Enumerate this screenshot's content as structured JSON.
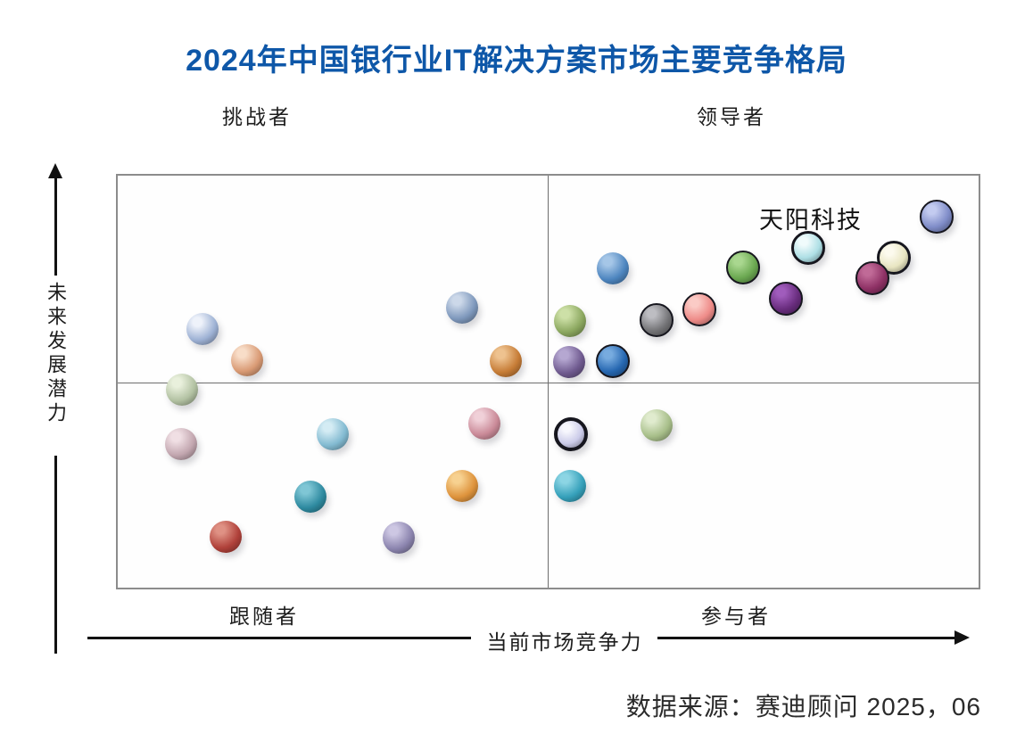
{
  "page": {
    "title": "2024年中国银行业IT解决方案市场主要竞争格局",
    "source": "数据来源：赛迪顾问 2025，06"
  },
  "chart_data": {
    "type": "scatter",
    "title": "2024年中国银行业IT解决方案市场主要竞争格局",
    "xlabel": "当前市场竞争力",
    "ylabel": "未来发展潜力",
    "xlim": [
      0,
      100
    ],
    "ylim": [
      0,
      100
    ],
    "grid": "2x2 quadrant, dividers at x=50 and y=50, no numeric ticks shown",
    "legend_position": "none",
    "quadrant_labels": {
      "top_left": "挑战者",
      "top_right": "领导者",
      "bottom_left": "跟随者",
      "bottom_right": "参与者"
    },
    "labeled_company": "天阳科技",
    "source": "数据来源：赛迪顾问 2025，06",
    "points": [
      {
        "quadrant": "挑战者",
        "x": 10.0,
        "y": 62.7,
        "r": 18,
        "ring": 0,
        "c": "#9db1d4",
        "h": "#eef2fa"
      },
      {
        "quadrant": "挑战者",
        "x": 15.2,
        "y": 55.2,
        "r": 18,
        "ring": 0,
        "c": "#d99a74",
        "h": "#f8ddc8"
      },
      {
        "quadrant": "挑战者",
        "x": 40.0,
        "y": 67.8,
        "r": 18,
        "ring": 0,
        "c": "#7e98bc",
        "h": "#ccd8e9"
      },
      {
        "quadrant": "挑战者",
        "x": 45.1,
        "y": 54.9,
        "r": 18,
        "ring": 0,
        "c": "#c67c36",
        "h": "#eec28f"
      },
      {
        "quadrant": "跟随者",
        "x": 7.6,
        "y": 48.1,
        "r": 18,
        "ring": 0,
        "c": "#b2c1a2",
        "h": "#e9f0dc"
      },
      {
        "quadrant": "跟随者",
        "x": 7.5,
        "y": 35.0,
        "r": 18,
        "ring": 0,
        "c": "#c2a6af",
        "h": "#f0dfe4"
      },
      {
        "quadrant": "跟随者",
        "x": 25.1,
        "y": 37.3,
        "r": 18,
        "ring": 0,
        "c": "#82bad1",
        "h": "#d4ecf4"
      },
      {
        "quadrant": "跟随者",
        "x": 42.6,
        "y": 39.9,
        "r": 18,
        "ring": 0,
        "c": "#ca8a98",
        "h": "#f0d0d8"
      },
      {
        "quadrant": "跟随者",
        "x": 22.5,
        "y": 22.3,
        "r": 18,
        "ring": 0,
        "c": "#2e8aa0",
        "h": "#7fc6d5"
      },
      {
        "quadrant": "跟随者",
        "x": 40.0,
        "y": 24.9,
        "r": 18,
        "ring": 0,
        "c": "#de933c",
        "h": "#f7d190"
      },
      {
        "quadrant": "跟随者",
        "x": 12.7,
        "y": 12.7,
        "r": 18,
        "ring": 0,
        "c": "#b0413a",
        "h": "#df9184"
      },
      {
        "quadrant": "跟随者",
        "x": 32.7,
        "y": 12.4,
        "r": 18,
        "ring": 0,
        "c": "#8b84ae",
        "h": "#cdc7e3"
      },
      {
        "quadrant": "领导者",
        "x": 57.5,
        "y": 77.3,
        "r": 18,
        "ring": 0,
        "c": "#4d85bf",
        "h": "#a5c6e7"
      },
      {
        "quadrant": "领导者",
        "x": 72.5,
        "y": 77.5,
        "r": 17,
        "ring": 2,
        "c": "#6ba851",
        "h": "#a9d78f"
      },
      {
        "quadrant": "领导者",
        "x": 52.5,
        "y": 64.6,
        "r": 18,
        "ring": 0,
        "c": "#8ba75f",
        "h": "#cde0a7"
      },
      {
        "quadrant": "领导者",
        "x": 62.5,
        "y": 64.8,
        "r": 17,
        "ring": 2,
        "c": "#757578",
        "h": "#bdbdc2"
      },
      {
        "quadrant": "领导者",
        "x": 67.5,
        "y": 67.4,
        "r": 17,
        "ring": 2,
        "c": "#ee8b88",
        "h": "#fbcbc6"
      },
      {
        "quadrant": "领导者",
        "x": 77.5,
        "y": 70.0,
        "r": 17,
        "ring": 2,
        "c": "#692d7e",
        "h": "#a05cbc"
      },
      {
        "quadrant": "领导者",
        "x": 52.4,
        "y": 54.7,
        "r": 18,
        "ring": 0,
        "c": "#6f5a8f",
        "h": "#b5a7d1"
      },
      {
        "quadrant": "领导者",
        "x": 57.5,
        "y": 54.9,
        "r": 17,
        "ring": 2,
        "c": "#2667b1",
        "h": "#77abdf"
      },
      {
        "quadrant": "领导者",
        "x": 80.1,
        "y": 82.2,
        "r": 16,
        "ring": 3,
        "c": "#aedfe5",
        "h": "#f0fbfc",
        "name": "天阳科技"
      },
      {
        "quadrant": "领导者",
        "x": 90.0,
        "y": 79.8,
        "r": 16,
        "ring": 3,
        "c": "#e8e5c1",
        "h": "#fcfaee"
      },
      {
        "quadrant": "领导者",
        "x": 87.5,
        "y": 74.9,
        "r": 17,
        "ring": 2,
        "c": "#8e3165",
        "h": "#c06a97"
      },
      {
        "quadrant": "领导者",
        "x": 94.9,
        "y": 89.7,
        "r": 17,
        "ring": 2,
        "c": "#7f8cc8",
        "h": "#c3cbf0"
      },
      {
        "quadrant": "参与者",
        "x": 52.6,
        "y": 37.3,
        "r": 15,
        "ring": 4,
        "c": "#cbcbe9",
        "h": "#f7f7fd"
      },
      {
        "quadrant": "参与者",
        "x": 62.5,
        "y": 39.5,
        "r": 18,
        "ring": 0,
        "c": "#a7be89",
        "h": "#e0ebce"
      },
      {
        "quadrant": "参与者",
        "x": 52.5,
        "y": 24.9,
        "r": 18,
        "ring": 0,
        "c": "#35a0ba",
        "h": "#8cd5e4"
      }
    ]
  },
  "colors": {
    "title": "#0e57a8",
    "box_border": "#8c8c8c",
    "quadrant_divider": "#6e6e6e",
    "axis": "#111111",
    "label_text": "#1d1d1d",
    "bubble_ring": "#16161e",
    "source_text": "#2b2b2b"
  }
}
